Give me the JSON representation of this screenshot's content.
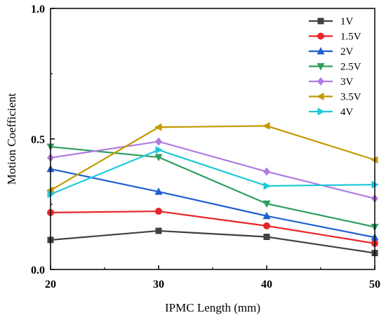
{
  "chart_data": {
    "type": "line",
    "xlabel": "IPMC Length (mm)",
    "ylabel": "Motion Coefficient",
    "x": [
      20,
      30,
      40,
      50
    ],
    "xlim": [
      20,
      50
    ],
    "ylim": [
      0.0,
      1.0
    ],
    "xticks": [
      "20",
      "30",
      "40",
      "50"
    ],
    "yticks": [
      "0.0",
      "0.5",
      "1.0"
    ],
    "ytick_values": [
      0.0,
      0.5,
      1.0
    ],
    "legend_position": "top-right",
    "grid": false,
    "series": [
      {
        "name": "1V",
        "color": "#404040",
        "marker": "square",
        "values": [
          0.113,
          0.148,
          0.125,
          0.063
        ]
      },
      {
        "name": "1.5V",
        "color": "#e8262a",
        "marker": "circle",
        "values": [
          0.218,
          0.223,
          0.167,
          0.1
        ]
      },
      {
        "name": "2V",
        "color": "#1f5fd1",
        "marker": "triangle-up",
        "values": [
          0.385,
          0.298,
          0.205,
          0.123
        ]
      },
      {
        "name": "2.5V",
        "color": "#2e9e5e",
        "marker": "triangle-down",
        "values": [
          0.47,
          0.43,
          0.252,
          0.163
        ]
      },
      {
        "name": "3V",
        "color": "#b07be0",
        "marker": "diamond",
        "values": [
          0.428,
          0.49,
          0.375,
          0.272
        ]
      },
      {
        "name": "3.5V",
        "color": "#c49a00",
        "marker": "triangle-left",
        "values": [
          0.303,
          0.545,
          0.55,
          0.42
        ]
      },
      {
        "name": "4V",
        "color": "#1ec8d8",
        "marker": "triangle-right",
        "values": [
          0.288,
          0.458,
          0.32,
          0.325
        ]
      }
    ]
  }
}
